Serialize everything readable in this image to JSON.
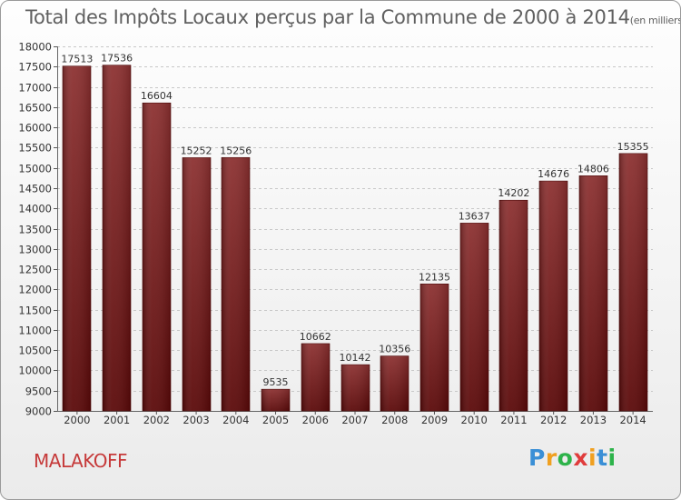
{
  "header": {
    "title": "Total des Impôts Locaux perçus par la Commune de 2000 à 2014",
    "subtitle": "(en milliers d'€)"
  },
  "footer": {
    "commune": "MALAKOFF",
    "logo_letters": [
      {
        "char": "P",
        "color": "#3a8fd6"
      },
      {
        "char": "r",
        "color": "#f0a020"
      },
      {
        "char": "o",
        "color": "#2db34a"
      },
      {
        "char": "x",
        "color": "#e03c3c"
      },
      {
        "char": "i",
        "color": "#f0a020"
      },
      {
        "char": "t",
        "color": "#3a8fd6"
      },
      {
        "char": "i",
        "color": "#2db34a"
      }
    ]
  },
  "chart_data": {
    "type": "bar",
    "title": "Total des Impôts Locaux perçus par la Commune de 2000 à 2014",
    "xlabel": "",
    "ylabel": "",
    "categories": [
      "2000",
      "2001",
      "2002",
      "2003",
      "2004",
      "2005",
      "2006",
      "2007",
      "2008",
      "2009",
      "2010",
      "2011",
      "2012",
      "2013",
      "2014"
    ],
    "values": [
      17513,
      17536,
      16604,
      15252,
      15256,
      9535,
      10662,
      10142,
      10356,
      12135,
      13637,
      14202,
      14676,
      14806,
      15355
    ],
    "ylim": [
      9000,
      18000
    ],
    "yticks": [
      9000,
      9500,
      10000,
      10500,
      11000,
      11500,
      12000,
      12500,
      13000,
      13500,
      14000,
      14500,
      15000,
      15500,
      16000,
      16500,
      17000,
      17500,
      18000
    ],
    "grid": true,
    "bar_color": "#7a1c1c"
  }
}
